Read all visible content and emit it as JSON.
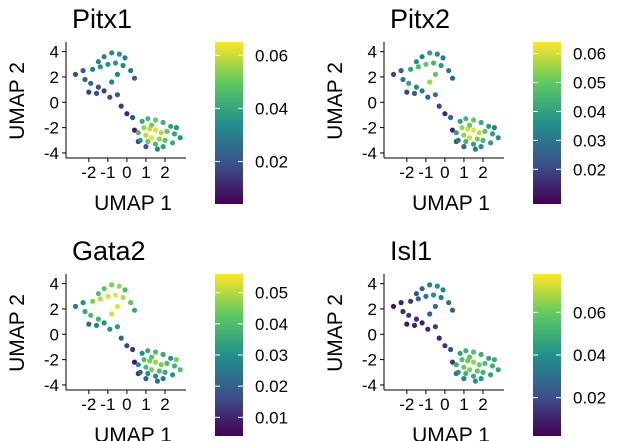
{
  "palette": [
    "#440154",
    "#3b528b",
    "#21918c",
    "#5ec962",
    "#fde725"
  ],
  "chart_data": [
    {
      "type": "scatter",
      "title": "Pitx1",
      "xlabel": "UMAP 1",
      "ylabel": "UMAP 2",
      "x_ticks": [
        -2,
        -1,
        0,
        1,
        2
      ],
      "x_tick_labels": [
        "-2",
        "-1",
        "0",
        "1",
        "2"
      ],
      "y_ticks": [
        -4,
        -2,
        0,
        2,
        4
      ],
      "y_tick_labels": [
        "-4",
        "-2",
        "0",
        "2",
        "4"
      ],
      "xlim": [
        -3.2,
        3.0
      ],
      "ylim": [
        -4.4,
        4.6
      ],
      "legend": "right",
      "colorbar_range": [
        0.004,
        0.065
      ],
      "colorbar_ticks": [
        0.02,
        0.04,
        0.06
      ],
      "colorbar_tick_labels": [
        "0.02",
        "0.04",
        "0.06"
      ],
      "points": [
        [
          -1.5,
          3.2,
          0.03
        ],
        [
          -1.2,
          3.6,
          0.03
        ],
        [
          -0.8,
          3.9,
          0.033
        ],
        [
          -0.4,
          3.8,
          0.035
        ],
        [
          -0.1,
          3.5,
          0.03
        ],
        [
          -1.8,
          2.6,
          0.03
        ],
        [
          -1.4,
          2.8,
          0.035
        ],
        [
          -1.0,
          3.0,
          0.034
        ],
        [
          -0.6,
          3.1,
          0.036
        ],
        [
          -0.2,
          2.9,
          0.032
        ],
        [
          0.2,
          2.5,
          0.028
        ],
        [
          0.4,
          1.9,
          0.022
        ],
        [
          -2.3,
          2.5,
          0.02
        ],
        [
          -2.7,
          2.2,
          0.018
        ],
        [
          -2.2,
          1.8,
          0.022
        ],
        [
          -1.9,
          1.5,
          0.025
        ],
        [
          -1.5,
          1.2,
          0.02
        ],
        [
          -1.2,
          0.9,
          0.016
        ],
        [
          -0.8,
          1.6,
          0.03
        ],
        [
          -0.5,
          2.2,
          0.032
        ],
        [
          -1.6,
          0.7,
          0.018
        ],
        [
          -2.0,
          0.8,
          0.016
        ],
        [
          -0.9,
          0.4,
          0.018
        ],
        [
          -0.5,
          0.6,
          0.02
        ],
        [
          -0.3,
          -0.3,
          0.015
        ],
        [
          0.0,
          -0.9,
          0.012
        ],
        [
          0.3,
          -1.2,
          0.02
        ],
        [
          0.4,
          -2.2,
          0.01
        ],
        [
          0.6,
          -3.1,
          0.015
        ],
        [
          1.0,
          -3.5,
          0.02
        ],
        [
          0.8,
          -1.5,
          0.04
        ],
        [
          1.1,
          -1.3,
          0.045
        ],
        [
          1.5,
          -1.4,
          0.05
        ],
        [
          1.9,
          -1.6,
          0.042
        ],
        [
          2.3,
          -1.9,
          0.038
        ],
        [
          0.9,
          -2.0,
          0.055
        ],
        [
          1.2,
          -2.1,
          0.06
        ],
        [
          1.5,
          -2.2,
          0.062
        ],
        [
          1.8,
          -2.4,
          0.058
        ],
        [
          2.1,
          -2.3,
          0.05
        ],
        [
          2.5,
          -2.5,
          0.04
        ],
        [
          2.8,
          -2.8,
          0.035
        ],
        [
          0.6,
          -2.4,
          0.045
        ],
        [
          1.0,
          -2.6,
          0.058
        ],
        [
          1.3,
          -2.8,
          0.063
        ],
        [
          1.7,
          -2.9,
          0.055
        ],
        [
          2.0,
          -3.0,
          0.048
        ],
        [
          2.4,
          -3.2,
          0.04
        ],
        [
          1.1,
          -3.1,
          0.05
        ],
        [
          1.5,
          -3.3,
          0.045
        ],
        [
          1.9,
          -3.5,
          0.038
        ],
        [
          1.3,
          -1.8,
          0.052
        ],
        [
          0.7,
          -3.0,
          0.035
        ],
        [
          2.6,
          -2.0,
          0.035
        ],
        [
          1.6,
          -3.7,
          0.032
        ]
      ]
    },
    {
      "type": "scatter",
      "title": "Pitx2",
      "xlabel": "UMAP 1",
      "ylabel": "UMAP 2",
      "x_ticks": [
        -2,
        -1,
        0,
        1,
        2
      ],
      "x_tick_labels": [
        "-2",
        "-1",
        "0",
        "1",
        "2"
      ],
      "y_ticks": [
        -4,
        -2,
        0,
        2,
        4
      ],
      "y_tick_labels": [
        "-4",
        "-2",
        "0",
        "2",
        "4"
      ],
      "xlim": [
        -3.2,
        3.0
      ],
      "ylim": [
        -4.4,
        4.6
      ],
      "legend": "right",
      "colorbar_range": [
        0.008,
        0.064
      ],
      "colorbar_ticks": [
        0.02,
        0.03,
        0.04,
        0.05,
        0.06
      ],
      "colorbar_tick_labels": [
        "0.02",
        "0.03",
        "0.04",
        "0.05",
        "0.06"
      ],
      "points": [
        [
          -1.5,
          3.2,
          0.035
        ],
        [
          -1.2,
          3.6,
          0.032
        ],
        [
          -0.8,
          3.9,
          0.04
        ],
        [
          -0.4,
          3.8,
          0.035
        ],
        [
          -0.1,
          3.5,
          0.03
        ],
        [
          -1.8,
          2.6,
          0.04
        ],
        [
          -1.4,
          2.8,
          0.045
        ],
        [
          -1.0,
          3.0,
          0.05
        ],
        [
          -0.6,
          3.1,
          0.045
        ],
        [
          -0.2,
          2.9,
          0.038
        ],
        [
          0.2,
          2.5,
          0.03
        ],
        [
          0.4,
          1.9,
          0.025
        ],
        [
          -2.3,
          2.5,
          0.025
        ],
        [
          -2.7,
          2.2,
          0.02
        ],
        [
          -2.2,
          1.8,
          0.03
        ],
        [
          -1.9,
          1.5,
          0.04
        ],
        [
          -1.5,
          1.2,
          0.035
        ],
        [
          -1.2,
          0.9,
          0.03
        ],
        [
          -0.8,
          1.6,
          0.055
        ],
        [
          -0.5,
          2.2,
          0.05
        ],
        [
          -1.6,
          0.7,
          0.025
        ],
        [
          -2.0,
          0.8,
          0.02
        ],
        [
          -0.9,
          0.4,
          0.025
        ],
        [
          -0.5,
          0.6,
          0.03
        ],
        [
          -0.3,
          -0.3,
          0.02
        ],
        [
          0.0,
          -0.9,
          0.015
        ],
        [
          0.3,
          -1.2,
          0.025
        ],
        [
          0.4,
          -2.2,
          0.015
        ],
        [
          0.6,
          -3.1,
          0.02
        ],
        [
          1.0,
          -3.5,
          0.025
        ],
        [
          0.8,
          -1.5,
          0.04
        ],
        [
          1.1,
          -1.3,
          0.045
        ],
        [
          1.5,
          -1.4,
          0.05
        ],
        [
          1.9,
          -1.6,
          0.042
        ],
        [
          2.3,
          -1.9,
          0.038
        ],
        [
          0.9,
          -2.0,
          0.055
        ],
        [
          1.2,
          -2.1,
          0.06
        ],
        [
          1.5,
          -2.2,
          0.062
        ],
        [
          1.8,
          -2.4,
          0.058
        ],
        [
          2.1,
          -2.3,
          0.05
        ],
        [
          2.5,
          -2.5,
          0.04
        ],
        [
          2.8,
          -2.8,
          0.035
        ],
        [
          0.6,
          -2.4,
          0.04
        ],
        [
          1.0,
          -2.6,
          0.055
        ],
        [
          1.3,
          -2.8,
          0.06
        ],
        [
          1.7,
          -2.9,
          0.052
        ],
        [
          2.0,
          -3.0,
          0.045
        ],
        [
          2.4,
          -3.2,
          0.038
        ],
        [
          1.1,
          -3.1,
          0.045
        ],
        [
          1.5,
          -3.3,
          0.04
        ],
        [
          1.9,
          -3.5,
          0.035
        ],
        [
          1.3,
          -1.8,
          0.05
        ],
        [
          0.7,
          -3.0,
          0.03
        ],
        [
          2.6,
          -2.0,
          0.032
        ],
        [
          1.6,
          -3.7,
          0.03
        ]
      ]
    },
    {
      "type": "scatter",
      "title": "Gata2",
      "xlabel": "UMAP 1",
      "ylabel": "UMAP 2",
      "x_ticks": [
        -2,
        -1,
        0,
        1,
        2
      ],
      "x_tick_labels": [
        "-2",
        "-1",
        "0",
        "1",
        "2"
      ],
      "y_ticks": [
        -4,
        -2,
        0,
        2,
        4
      ],
      "y_tick_labels": [
        "-4",
        "-2",
        "0",
        "2",
        "4"
      ],
      "xlim": [
        -3.2,
        3.0
      ],
      "ylim": [
        -4.4,
        4.6
      ],
      "legend": "right",
      "colorbar_range": [
        0.004,
        0.056
      ],
      "colorbar_ticks": [
        0.01,
        0.02,
        0.03,
        0.04,
        0.05
      ],
      "colorbar_tick_labels": [
        "0.01",
        "0.02",
        "0.03",
        "0.04",
        "0.05"
      ],
      "points": [
        [
          -1.5,
          3.2,
          0.04
        ],
        [
          -1.2,
          3.6,
          0.042
        ],
        [
          -0.8,
          3.9,
          0.045
        ],
        [
          -0.4,
          3.8,
          0.048
        ],
        [
          -0.1,
          3.5,
          0.04
        ],
        [
          -1.8,
          2.6,
          0.045
        ],
        [
          -1.4,
          2.8,
          0.05
        ],
        [
          -1.0,
          3.0,
          0.053
        ],
        [
          -0.6,
          3.1,
          0.055
        ],
        [
          -0.2,
          2.9,
          0.05
        ],
        [
          0.2,
          2.5,
          0.042
        ],
        [
          0.4,
          1.9,
          0.035
        ],
        [
          -2.3,
          2.5,
          0.03
        ],
        [
          -2.7,
          2.2,
          0.025
        ],
        [
          -2.2,
          1.8,
          0.035
        ],
        [
          -1.9,
          1.5,
          0.04
        ],
        [
          -1.5,
          1.2,
          0.038
        ],
        [
          -1.2,
          0.9,
          0.03
        ],
        [
          -0.8,
          1.6,
          0.052
        ],
        [
          -0.5,
          2.2,
          0.054
        ],
        [
          -1.6,
          0.7,
          0.028
        ],
        [
          -2.0,
          0.8,
          0.022
        ],
        [
          -0.9,
          0.4,
          0.03
        ],
        [
          -0.5,
          0.6,
          0.032
        ],
        [
          -0.3,
          -0.3,
          0.02
        ],
        [
          0.0,
          -0.9,
          0.015
        ],
        [
          0.3,
          -1.2,
          0.012
        ],
        [
          0.4,
          -2.2,
          0.008
        ],
        [
          0.6,
          -3.1,
          0.012
        ],
        [
          1.0,
          -3.5,
          0.02
        ],
        [
          0.8,
          -1.5,
          0.03
        ],
        [
          1.1,
          -1.3,
          0.035
        ],
        [
          1.5,
          -1.4,
          0.04
        ],
        [
          1.9,
          -1.6,
          0.035
        ],
        [
          2.3,
          -1.9,
          0.03
        ],
        [
          0.9,
          -2.0,
          0.04
        ],
        [
          1.2,
          -2.1,
          0.045
        ],
        [
          1.5,
          -2.2,
          0.048
        ],
        [
          1.8,
          -2.4,
          0.045
        ],
        [
          2.1,
          -2.3,
          0.04
        ],
        [
          2.5,
          -2.5,
          0.038
        ],
        [
          2.8,
          -2.8,
          0.04
        ],
        [
          0.6,
          -2.4,
          0.03
        ],
        [
          1.0,
          -2.6,
          0.04
        ],
        [
          1.3,
          -2.8,
          0.045
        ],
        [
          1.7,
          -2.9,
          0.04
        ],
        [
          2.0,
          -3.0,
          0.035
        ],
        [
          2.4,
          -3.2,
          0.03
        ],
        [
          1.1,
          -3.1,
          0.03
        ],
        [
          1.5,
          -3.3,
          0.028
        ],
        [
          1.9,
          -3.5,
          0.025
        ],
        [
          1.3,
          -1.8,
          0.042
        ],
        [
          0.7,
          -3.0,
          0.02
        ],
        [
          2.6,
          -2.0,
          0.045
        ],
        [
          1.6,
          -3.7,
          0.022
        ]
      ]
    },
    {
      "type": "scatter",
      "title": "Isl1",
      "xlabel": "UMAP 1",
      "ylabel": "UMAP 2",
      "x_ticks": [
        -2,
        -1,
        0,
        1,
        2
      ],
      "x_tick_labels": [
        "-2",
        "-1",
        "0",
        "1",
        "2"
      ],
      "y_ticks": [
        -4,
        -2,
        0,
        2,
        4
      ],
      "y_tick_labels": [
        "-4",
        "-2",
        "0",
        "2",
        "4"
      ],
      "xlim": [
        -3.2,
        3.0
      ],
      "ylim": [
        -4.4,
        4.6
      ],
      "legend": "right",
      "colorbar_range": [
        0.002,
        0.078
      ],
      "colorbar_ticks": [
        0.02,
        0.04,
        0.06
      ],
      "colorbar_tick_labels": [
        "0.02",
        "0.04",
        "0.06"
      ],
      "points": [
        [
          -1.5,
          3.2,
          0.02
        ],
        [
          -1.2,
          3.6,
          0.025
        ],
        [
          -0.8,
          3.9,
          0.035
        ],
        [
          -0.4,
          3.8,
          0.04
        ],
        [
          -0.1,
          3.5,
          0.035
        ],
        [
          -1.8,
          2.6,
          0.015
        ],
        [
          -1.4,
          2.8,
          0.025
        ],
        [
          -1.0,
          3.0,
          0.03
        ],
        [
          -0.6,
          3.1,
          0.04
        ],
        [
          -0.2,
          2.9,
          0.035
        ],
        [
          0.2,
          2.5,
          0.03
        ],
        [
          0.4,
          1.9,
          0.025
        ],
        [
          -2.3,
          2.5,
          0.01
        ],
        [
          -2.7,
          2.2,
          0.008
        ],
        [
          -2.2,
          1.8,
          0.012
        ],
        [
          -1.9,
          1.5,
          0.015
        ],
        [
          -1.5,
          1.2,
          0.012
        ],
        [
          -1.2,
          0.9,
          0.01
        ],
        [
          -0.8,
          1.6,
          0.025
        ],
        [
          -0.5,
          2.2,
          0.03
        ],
        [
          -1.6,
          0.7,
          0.01
        ],
        [
          -2.0,
          0.8,
          0.008
        ],
        [
          -0.9,
          0.4,
          0.012
        ],
        [
          -0.5,
          0.6,
          0.015
        ],
        [
          -0.3,
          -0.3,
          0.01
        ],
        [
          0.0,
          -0.9,
          0.015
        ],
        [
          0.3,
          -1.2,
          0.02
        ],
        [
          0.4,
          -2.2,
          0.015
        ],
        [
          0.6,
          -3.1,
          0.03
        ],
        [
          1.0,
          -3.5,
          0.035
        ],
        [
          0.8,
          -1.5,
          0.045
        ],
        [
          1.1,
          -1.3,
          0.05
        ],
        [
          1.5,
          -1.4,
          0.055
        ],
        [
          1.9,
          -1.6,
          0.05
        ],
        [
          2.3,
          -1.9,
          0.045
        ],
        [
          0.9,
          -2.0,
          0.055
        ],
        [
          1.2,
          -2.1,
          0.06
        ],
        [
          1.5,
          -2.2,
          0.065
        ],
        [
          1.8,
          -2.4,
          0.06
        ],
        [
          2.1,
          -2.3,
          0.055
        ],
        [
          2.5,
          -2.5,
          0.05
        ],
        [
          2.8,
          -2.8,
          0.045
        ],
        [
          0.6,
          -2.4,
          0.05
        ],
        [
          1.0,
          -2.6,
          0.06
        ],
        [
          1.3,
          -2.8,
          0.062
        ],
        [
          1.7,
          -2.9,
          0.058
        ],
        [
          2.0,
          -3.0,
          0.05
        ],
        [
          2.4,
          -3.2,
          0.045
        ],
        [
          1.1,
          -3.1,
          0.05
        ],
        [
          1.5,
          -3.3,
          0.048
        ],
        [
          1.9,
          -3.5,
          0.042
        ],
        [
          1.3,
          -1.8,
          0.058
        ],
        [
          0.7,
          -3.0,
          0.04
        ],
        [
          2.6,
          -2.0,
          0.048
        ],
        [
          1.6,
          -3.7,
          0.04
        ]
      ]
    }
  ]
}
